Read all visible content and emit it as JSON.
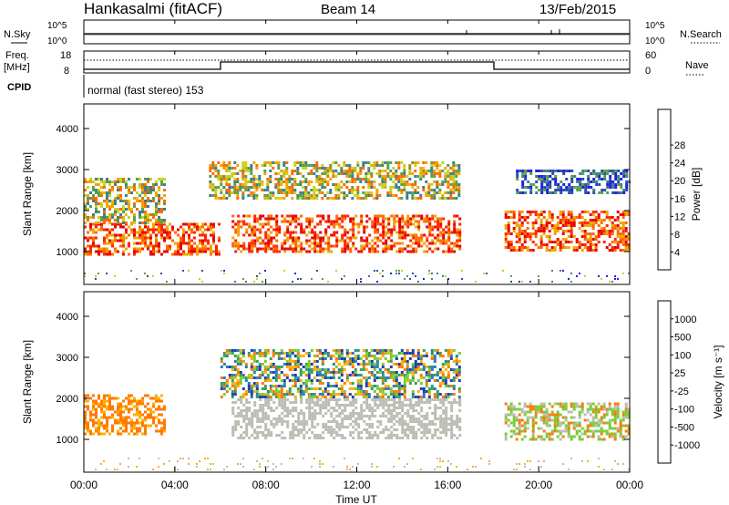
{
  "header": {
    "station": "Hankasalmi (fitACF)",
    "beam": "Beam 14",
    "date": "13/Feb/2015"
  },
  "top_panels": {
    "nsky_label": "N.Sky",
    "nsearch_label": "N.Search",
    "noise_ticks": [
      "10^5",
      "10^0"
    ],
    "freq_label_line1": "Freq.",
    "freq_label_line2": "[MHz]",
    "freq_ticks": [
      "18",
      "8"
    ],
    "nave_label": "Nave",
    "nave_ticks": [
      "60",
      "0"
    ],
    "cpid_label": "CPID",
    "cpid_text": "normal (fast stereo) 153"
  },
  "x_axis": {
    "label": "Time UT",
    "ticks": [
      "00:00",
      "04:00",
      "08:00",
      "12:00",
      "16:00",
      "20:00",
      "00:00"
    ]
  },
  "chart_data": [
    {
      "type": "heatmap",
      "quantity": "power",
      "x_range_hours": [
        0,
        24
      ],
      "ylabel": "Slant Range [km]",
      "yticks": [
        1000,
        2000,
        3000,
        4000
      ],
      "ylim": [
        200,
        4600
      ],
      "colorbar_label": "Power [dB]",
      "colorbar_ticks": [
        "4",
        "8",
        "12",
        "16",
        "20",
        "24",
        "28"
      ],
      "colors": [
        "#1f1fe6",
        "#2a4fa8",
        "#3f7f8a",
        "#5aa04a",
        "#c8d21e",
        "#f0a500",
        "#ff6a00",
        "#ff2600",
        "#e60000"
      ],
      "features": [
        {
          "t_start": 0,
          "t_end": 6,
          "r_low": 900,
          "r_high": 1700,
          "level": "high"
        },
        {
          "t_start": 0,
          "t_end": 3.5,
          "r_low": 1700,
          "r_high": 2800,
          "level": "medium"
        },
        {
          "t_start": 6.5,
          "t_end": 16.5,
          "r_low": 1000,
          "r_high": 1900,
          "level": "high"
        },
        {
          "t_start": 5.5,
          "t_end": 16.5,
          "r_low": 2300,
          "r_high": 3200,
          "level": "medium"
        },
        {
          "t_start": 18.5,
          "t_end": 24,
          "r_low": 1000,
          "r_high": 2000,
          "level": "high"
        },
        {
          "t_start": 19,
          "t_end": 24,
          "r_low": 2400,
          "r_high": 3000,
          "level": "low"
        }
      ]
    },
    {
      "type": "heatmap",
      "quantity": "velocity",
      "x_range_hours": [
        0,
        24
      ],
      "ylabel": "Slant Range [km]",
      "yticks": [
        1000,
        2000,
        3000,
        4000
      ],
      "ylim": [
        200,
        4600
      ],
      "colorbar_label": "Velocity [m s⁻¹]",
      "colorbar_ticks": [
        "1000",
        "500",
        "100",
        "25",
        "-25",
        "-100",
        "-500",
        "-1000"
      ],
      "colors": [
        "#2040b0",
        "#2a7fb0",
        "#3aa060",
        "#7acc3a",
        "#bdbdb5",
        "#ffb000",
        "#ff7a00",
        "#ff3a00",
        "#e60000"
      ],
      "features": [
        {
          "t_start": 0,
          "t_end": 3.5,
          "r_low": 1100,
          "r_high": 2100,
          "level": "orange"
        },
        {
          "t_start": 6.5,
          "t_end": 16.5,
          "r_low": 1000,
          "r_high": 2000,
          "level": "grey"
        },
        {
          "t_start": 6,
          "t_end": 16.5,
          "r_low": 2000,
          "r_high": 3200,
          "level": "mixed"
        },
        {
          "t_start": 18.5,
          "t_end": 24,
          "r_low": 1000,
          "r_high": 1900,
          "level": "green-orange"
        }
      ]
    }
  ]
}
